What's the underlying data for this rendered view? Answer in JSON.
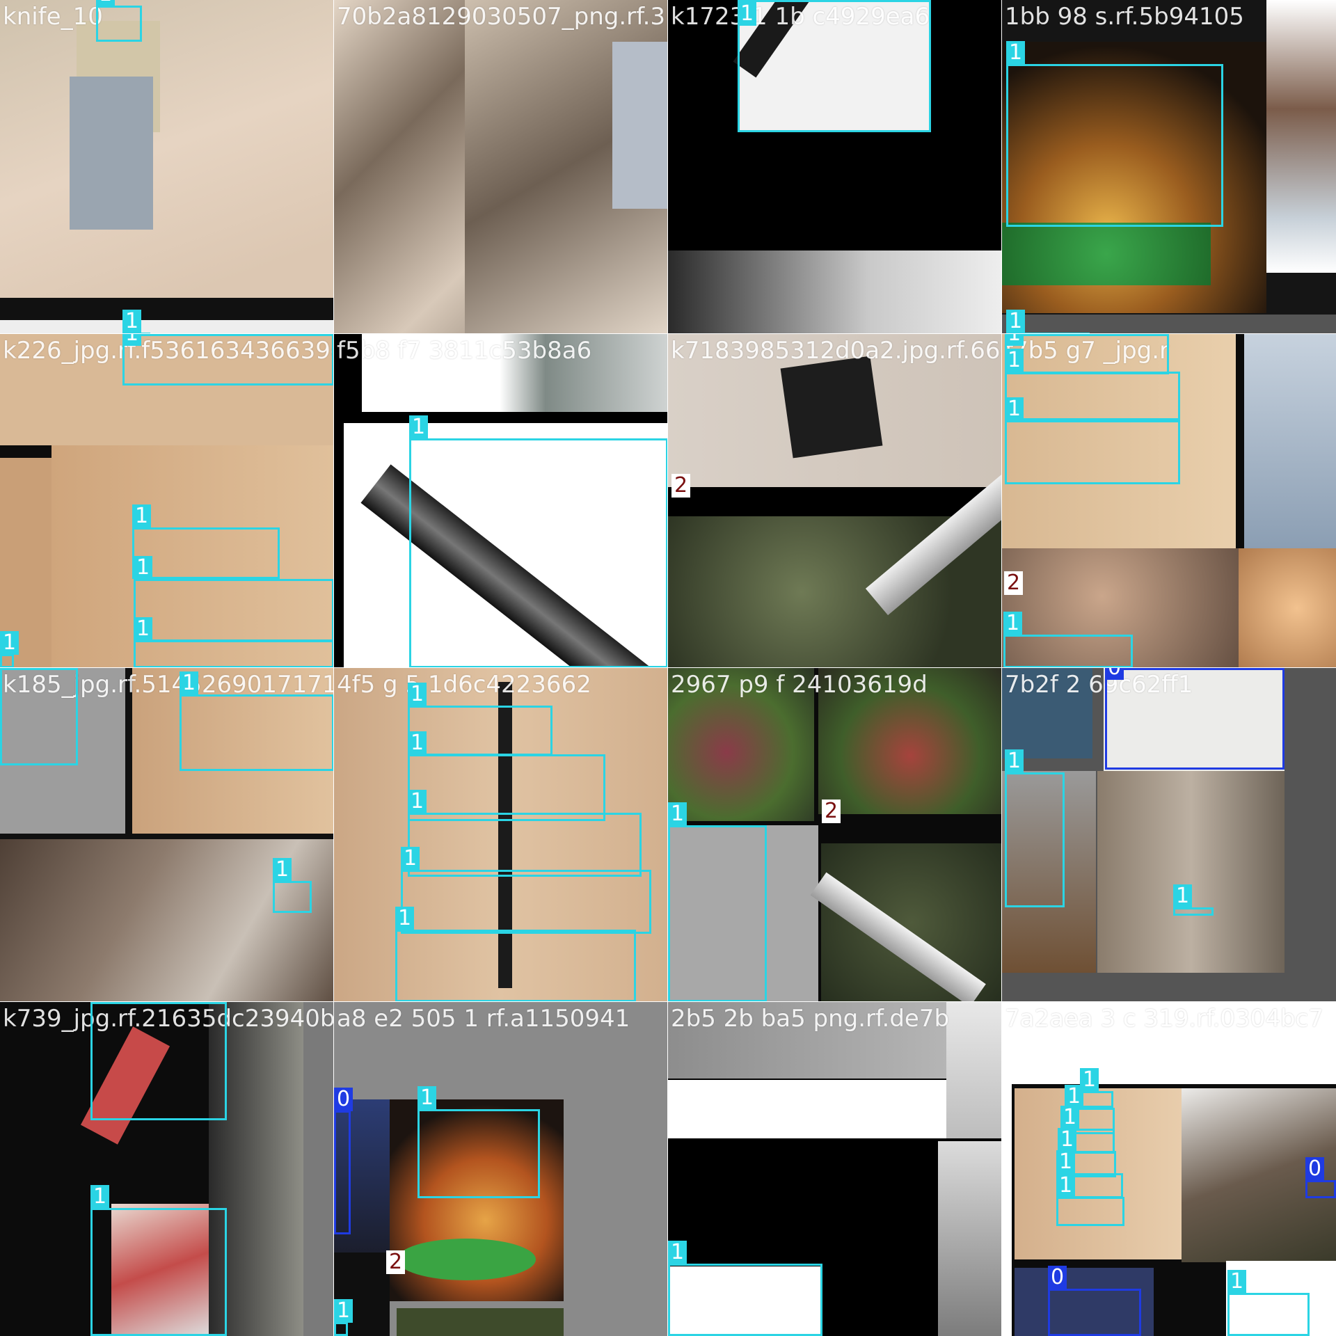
{
  "colors": {
    "class_0": "#1f3be2",
    "class_1": "#2bd4e4",
    "class_2": "#7a1010"
  },
  "tiles": [
    {
      "filename": "knife_10",
      "labels": [
        "1",
        "1"
      ]
    },
    {
      "filename": "70b2a8129030507_png.rf.3",
      "labels": []
    },
    {
      "filename": "k1723 1 1b c4929ea6",
      "labels": [
        "1"
      ]
    },
    {
      "filename": "1bb 98 s.rf.5b94105",
      "labels": [
        "1",
        "1"
      ]
    },
    {
      "filename": "k226_jpg.rf.f536163436639c",
      "labels": [
        "1",
        "1",
        "1",
        "1",
        "1"
      ]
    },
    {
      "filename": "f5b8 f7 3811c53b8a6",
      "labels": [
        "1"
      ]
    },
    {
      "filename": "k7183985312d0a2.jpg.rf.66abd5c",
      "labels": [
        "2"
      ]
    },
    {
      "filename": "f7b5 g7 _jpg.r",
      "labels": [
        "1",
        "1",
        "1",
        "2",
        "1"
      ]
    },
    {
      "filename": "k185_jpg.rf.514526901717197",
      "labels": [
        "1",
        "1",
        "1"
      ]
    },
    {
      "filename": "4f5 g 5 1d6c4223662",
      "labels": [
        "1",
        "1",
        "1",
        "1",
        "1"
      ]
    },
    {
      "filename": "2967 p9 f 24103619d",
      "labels": [
        "1",
        "2"
      ]
    },
    {
      "filename": "7b2f 2 69c62ff1",
      "labels": [
        "0",
        "1",
        "1"
      ]
    },
    {
      "filename": "k739_jpg.rf.21635dc23940bf",
      "labels": [
        "1",
        "1"
      ]
    },
    {
      "filename": "a8 e2 505 1 rf.a1150941",
      "labels": [
        "0",
        "1",
        "2",
        "1"
      ]
    },
    {
      "filename": "2b5 2b ba5 png.rf.de7b",
      "labels": [
        "1"
      ]
    },
    {
      "filename": "7a2aea 3 c 319.rf.0304bc7",
      "labels": [
        "1",
        "1",
        "1",
        "1",
        "1",
        "1",
        "0",
        "0",
        "1"
      ]
    }
  ]
}
